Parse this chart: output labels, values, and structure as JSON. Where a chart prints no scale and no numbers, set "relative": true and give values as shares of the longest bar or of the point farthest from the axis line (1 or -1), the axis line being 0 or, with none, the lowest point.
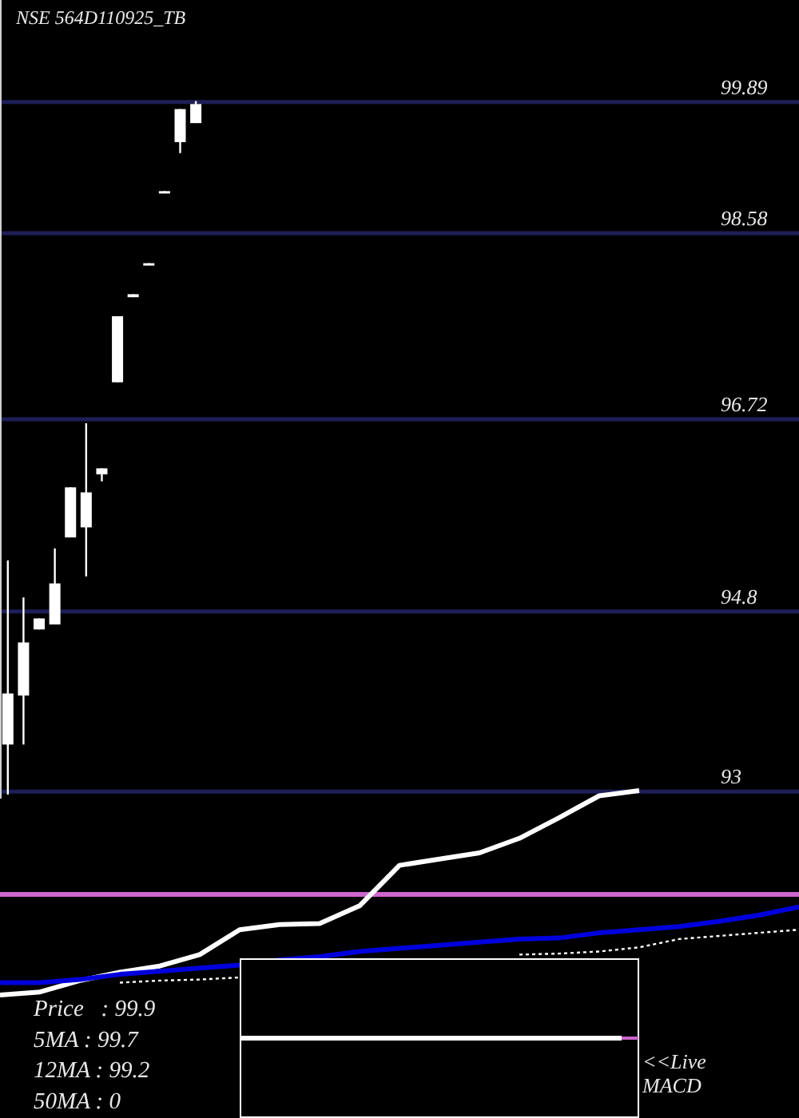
{
  "chart_data": [
    {
      "type": "candlestick",
      "title": "NSE 564D110925_TB",
      "categories": [
        null,
        null,
        null,
        null,
        null,
        null,
        null,
        null,
        null,
        null,
        null,
        null,
        null,
        null,
        null,
        null,
        null,
        null,
        null,
        null,
        null,
        null,
        null,
        null,
        null,
        null,
        null,
        null,
        null,
        null,
        null,
        null,
        null,
        null,
        null,
        null,
        null,
        null,
        null,
        null,
        null,
        null,
        null,
        null,
        null,
        null,
        null,
        null,
        null,
        null,
        null
      ],
      "ohlc": [
        [
          93.47,
          95.31,
          92.97,
          93.98
        ],
        [
          93.96,
          94.94,
          93.47,
          94.49
        ],
        [
          94.62,
          94.73,
          94.62,
          94.73
        ],
        [
          94.67,
          95.43,
          94.67,
          95.08
        ],
        [
          95.54,
          96.04,
          95.54,
          96.04
        ],
        [
          95.64,
          96.68,
          95.15,
          95.99
        ],
        [
          96.17,
          96.23,
          96.1,
          96.23
        ],
        [
          97.09,
          97.75,
          97.09,
          97.75
        ],
        [
          97.94,
          97.97,
          97.94,
          97.97
        ],
        [
          98.26,
          98.28,
          98.26,
          98.28
        ],
        [
          98.98,
          99.0,
          98.98,
          99.0
        ],
        [
          99.49,
          99.82,
          99.38,
          99.82
        ],
        [
          99.68,
          99.9,
          99.68,
          99.87
        ],
        null,
        null,
        null,
        null,
        null,
        null,
        null,
        null,
        null,
        null,
        null,
        null,
        null,
        null,
        null,
        null,
        null,
        null,
        null,
        null,
        null,
        null,
        null,
        null,
        null,
        null,
        null,
        null,
        null,
        null,
        null,
        null,
        null,
        null,
        null,
        null,
        null,
        null
      ],
      "color": "#ffffff",
      "ylim": [
        92.93,
        100.91
      ],
      "yticks": [
        99.89,
        98.58,
        96.72,
        94.8,
        93
      ],
      "grid": "y",
      "tick_labels": "y",
      "annotations": [
        "Price   : 99.9",
        "5MA : 99.7",
        "12MA : 99.2",
        "50MA : 0"
      ]
    },
    {
      "type": "line",
      "relative": true,
      "tick_labels": false,
      "categories": [
        null,
        null,
        null,
        null,
        null,
        null,
        null,
        null,
        null,
        null,
        null,
        null,
        null,
        null,
        null,
        null,
        null,
        null,
        null,
        null,
        null
      ],
      "series": [
        {
          "color": "#ffffff",
          "values": [
            -0.97,
            -0.94,
            -0.83,
            -0.75,
            -0.69,
            -0.58,
            -0.34,
            -0.29,
            -0.28,
            -0.11,
            0.28,
            0.34,
            0.4,
            0.54,
            0.74,
            0.95,
            1,
            null,
            null,
            null,
            null
          ]
        },
        {
          "color": "#0000dd",
          "values": [
            -0.85,
            -0.85,
            -0.82,
            -0.77,
            -0.74,
            -0.71,
            -0.68,
            -0.63,
            -0.6,
            -0.55,
            -0.52,
            -0.49,
            -0.46,
            -0.43,
            -0.42,
            -0.37,
            -0.34,
            -0.31,
            -0.26,
            -0.2,
            -0.12
          ]
        },
        {
          "color": "#ffffff",
          "line_style": "dotted",
          "values": [
            null,
            null,
            null,
            -0.85,
            -0.83,
            -0.82,
            -0.8,
            null,
            null,
            null,
            null,
            null,
            null,
            -0.58,
            -0.57,
            -0.55,
            -0.51,
            -0.43,
            -0.4,
            -0.37,
            -0.34
          ]
        }
      ],
      "ref_lines": [
        {
          "axis": "y",
          "value": 0,
          "color": "#cc66cc"
        }
      ],
      "annotations": [
        "<<Live MACD"
      ]
    }
  ]
}
